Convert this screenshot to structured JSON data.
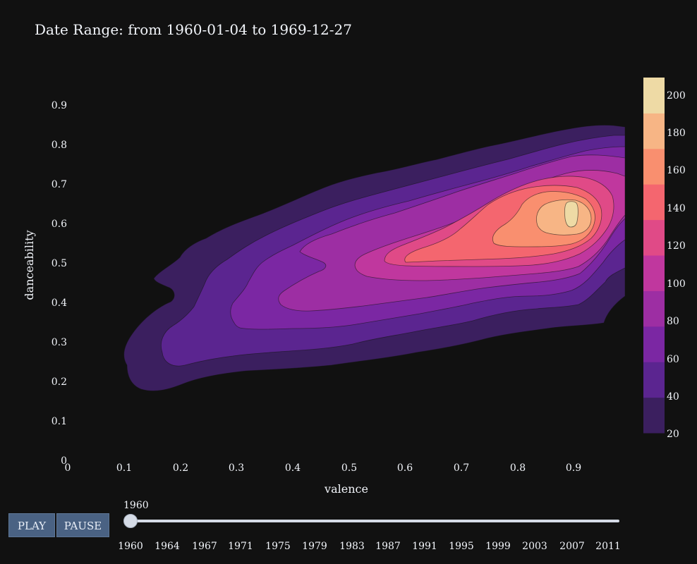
{
  "chart_data": {
    "type": "contour",
    "title": "Date Range: from 1960-01-04 to 1969-12-27",
    "xlabel": "valence",
    "ylabel": "danceability",
    "xlim": [
      0,
      1
    ],
    "ylim": [
      0,
      1
    ],
    "x_ticks": [
      "0",
      "0.1",
      "0.2",
      "0.3",
      "0.4",
      "0.5",
      "0.6",
      "0.7",
      "0.8",
      "0.9"
    ],
    "y_ticks": [
      "0",
      "0.1",
      "0.2",
      "0.3",
      "0.4",
      "0.5",
      "0.6",
      "0.7",
      "0.8",
      "0.9"
    ],
    "contour_levels": [
      20,
      40,
      60,
      80,
      100,
      120,
      140,
      160,
      180,
      200
    ],
    "colorbar": {
      "ticks": [
        "20",
        "40",
        "60",
        "80",
        "100",
        "120",
        "140",
        "160",
        "180",
        "200"
      ],
      "colors": [
        "#3b1f5f",
        "#5b2590",
        "#7b27a3",
        "#9d2ea3",
        "#c0379e",
        "#e04a87",
        "#f4666f",
        "#f98f6f",
        "#f7b585",
        "#eedaa5"
      ],
      "range": [
        10,
        210
      ]
    },
    "peak": {
      "valence": 0.89,
      "danceability": 0.63,
      "density": 210
    },
    "grid": false,
    "legend": "colorbar-right"
  },
  "controls": {
    "play_label": "PLAY",
    "pause_label": "PAUSE"
  },
  "slider": {
    "current_label": "1960",
    "current_value": 1960,
    "tick_labels": [
      "1960",
      "1964",
      "1967",
      "1971",
      "1975",
      "1979",
      "1983",
      "1987",
      "1991",
      "1995",
      "1999",
      "2003",
      "2007",
      "2011"
    ]
  }
}
